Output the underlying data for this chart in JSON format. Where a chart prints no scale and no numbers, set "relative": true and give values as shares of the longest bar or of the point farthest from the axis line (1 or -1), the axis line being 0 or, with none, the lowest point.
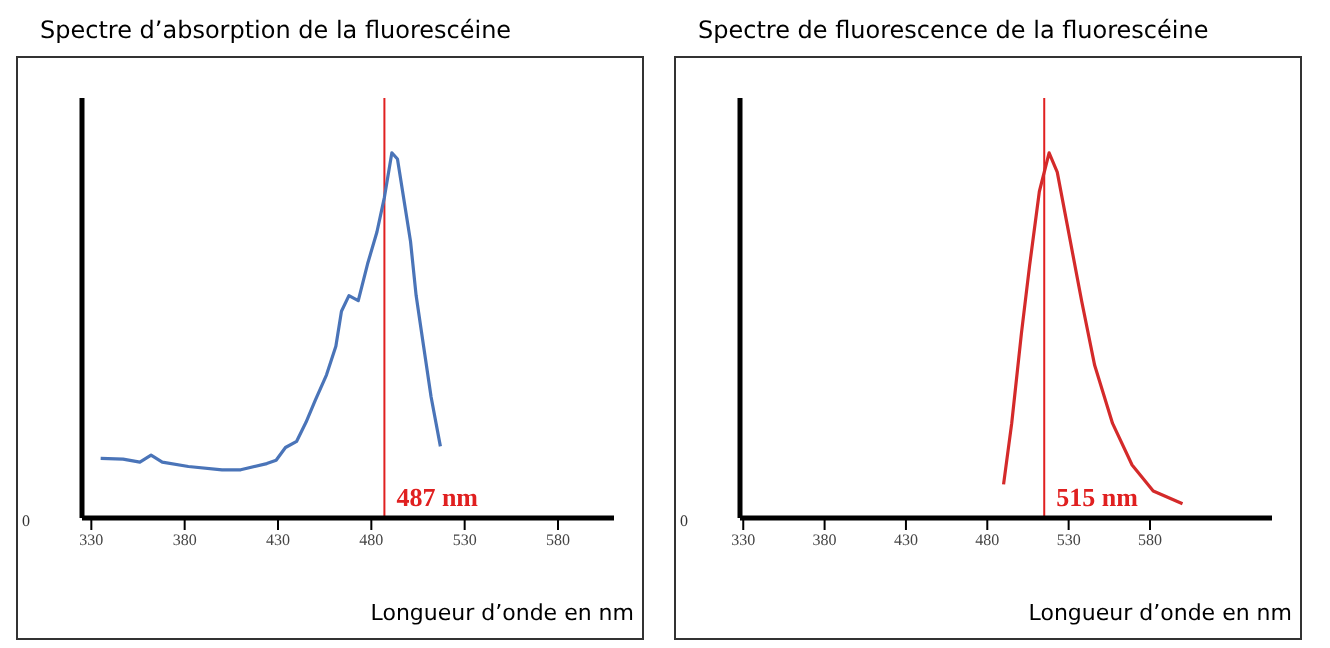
{
  "chart_data": [
    {
      "type": "line",
      "title": "Spectre d’absorption de la fluorescéine",
      "xlabel": "Longueur d’onde en nm",
      "relative": true,
      "xlim": [
        325,
        610
      ],
      "xticks": [
        330,
        380,
        430,
        480,
        530,
        580
      ],
      "marker": "none",
      "annotations": [
        "0"
      ],
      "series": [
        {
          "color": "#4a74b8",
          "x": [
            335,
            347,
            356,
            362,
            368,
            382,
            400,
            410,
            424,
            429,
            434,
            440,
            445,
            450,
            456,
            461,
            464,
            468,
            473,
            478,
            483,
            487,
            491,
            494,
            501,
            504,
            508,
            512,
            517
          ],
          "values": [
            0.163,
            0.161,
            0.153,
            0.172,
            0.153,
            0.141,
            0.132,
            0.132,
            0.149,
            0.158,
            0.193,
            0.21,
            0.262,
            0.323,
            0.392,
            0.47,
            0.566,
            0.609,
            0.595,
            0.696,
            0.783,
            0.878,
            1.0,
            0.983,
            0.757,
            0.609,
            0.47,
            0.332,
            0.196
          ]
        }
      ],
      "ref_lines": [
        {
          "axis": "x",
          "value": 487,
          "label": "487 nm",
          "color": "#e02020"
        }
      ]
    },
    {
      "type": "line",
      "title": "Spectre de fluorescence de la fluorescéine",
      "xlabel": "Longueur d’onde en nm",
      "relative": true,
      "xlim": [
        328,
        655
      ],
      "xticks": [
        330,
        380,
        430,
        480,
        530,
        580
      ],
      "marker": "none",
      "annotations": [
        "0"
      ],
      "series": [
        {
          "color": "#d42a2a",
          "x": [
            490,
            495,
            501,
            506,
            512,
            518,
            523,
            529,
            538,
            546,
            557,
            569,
            582,
            600
          ],
          "values": [
            0.092,
            0.259,
            0.506,
            0.691,
            0.894,
            1.0,
            0.947,
            0.806,
            0.594,
            0.418,
            0.259,
            0.145,
            0.074,
            0.039
          ]
        }
      ],
      "ref_lines": [
        {
          "axis": "x",
          "value": 515,
          "label": "515 nm",
          "color": "#e02020"
        }
      ]
    }
  ]
}
